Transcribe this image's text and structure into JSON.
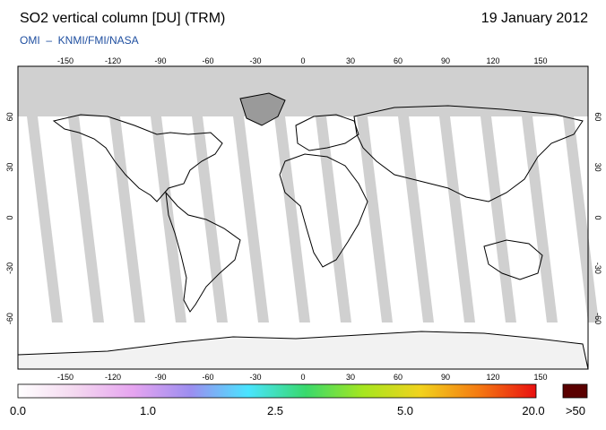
{
  "header": {
    "title": "SO2 vertical column [DU] (TRM)",
    "date": "19 January 2012",
    "credit": "OMI  –  KNMI/FMI/NASA"
  },
  "axes": {
    "lon_ticks": [
      "-150",
      "-120",
      "-90",
      "-60",
      "-30",
      "0",
      "30",
      "60",
      "90",
      "120",
      "150"
    ],
    "lat_ticks": [
      "60",
      "30",
      "0",
      "-30",
      "-60"
    ]
  },
  "colorbar": {
    "labels": [
      "0.0",
      "1.0",
      "2.5",
      "5.0",
      "20.0"
    ],
    "overflow_label": ">50",
    "colors": [
      "#ffffff",
      "#f4d8f0",
      "#e6a4f0",
      "#9c8ef0",
      "#49e4ff",
      "#39d96c",
      "#a6e61f",
      "#f2d21d",
      "#f47a12",
      "#e91010"
    ],
    "overflow_color": "#5a0000"
  },
  "colors": {
    "no_data": "#d0d0d0",
    "swath_gap": "#c8c8c8",
    "land_outline": "#000000"
  }
}
